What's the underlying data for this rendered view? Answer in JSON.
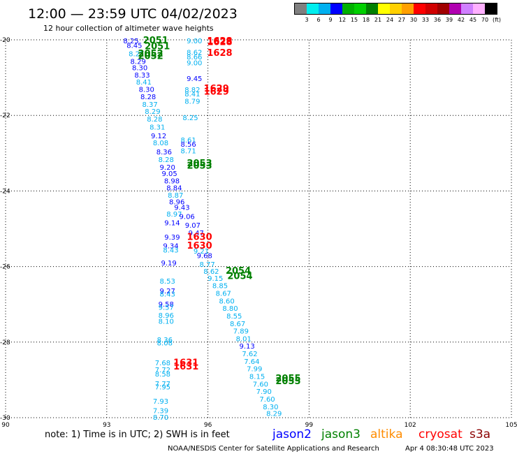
{
  "title": "12:00 — 23:59 UTC 04/02/2023",
  "subtitle": "12 hour collection of altimeter wave heights",
  "color_scale": {
    "labels": [
      "3",
      "6",
      "9",
      "12",
      "15",
      "18",
      "21",
      "24",
      "27",
      "30",
      "33",
      "36",
      "39",
      "42",
      "45",
      "70",
      "(ft)"
    ],
    "colors": [
      "#808080",
      "#00eeee",
      "#00b0f0",
      "#0000ff",
      "#00b000",
      "#00d000",
      "#008000",
      "#ffff00",
      "#ffd000",
      "#ffa000",
      "#ff0000",
      "#d00000",
      "#a00000",
      "#b000b0",
      "#d080ff",
      "#ffb0ff",
      "#000000"
    ]
  },
  "chart_data": {
    "type": "scatter",
    "xlim": [
      90,
      105
    ],
    "ylim": [
      -30,
      -20
    ],
    "x_ticks": [
      "90",
      "93",
      "96",
      "99",
      "102",
      "105"
    ],
    "y_ticks": [
      "-20",
      "-22",
      "-24",
      "-26",
      "-28",
      "-30"
    ],
    "grid": true,
    "swh_points": [
      {
        "x": 93.72,
        "y": -20.02,
        "text": "8.25",
        "color": "#0000ff"
      },
      {
        "x": 93.82,
        "y": -20.14,
        "text": "8.45",
        "color": "#0000ff"
      },
      {
        "x": 93.88,
        "y": -20.36,
        "text": "8.27",
        "color": "#00b0f0"
      },
      {
        "x": 93.93,
        "y": -20.56,
        "text": "8.29",
        "color": "#0000ff"
      },
      {
        "x": 93.98,
        "y": -20.73,
        "text": "8.30",
        "color": "#0000ff"
      },
      {
        "x": 94.05,
        "y": -20.92,
        "text": "8.33",
        "color": "#0000ff"
      },
      {
        "x": 94.1,
        "y": -21.11,
        "text": "8.41",
        "color": "#00b0f0"
      },
      {
        "x": 94.18,
        "y": -21.3,
        "text": "8.30",
        "color": "#0000ff"
      },
      {
        "x": 94.23,
        "y": -21.5,
        "text": "8.28",
        "color": "#0000ff"
      },
      {
        "x": 94.28,
        "y": -21.7,
        "text": "8.37",
        "color": "#00b0f0"
      },
      {
        "x": 94.36,
        "y": -21.89,
        "text": "8.29",
        "color": "#00b0f0"
      },
      {
        "x": 94.42,
        "y": -22.09,
        "text": "8.28",
        "color": "#00b0f0"
      },
      {
        "x": 94.5,
        "y": -22.3,
        "text": "8.31",
        "color": "#00b0f0"
      },
      {
        "x": 94.54,
        "y": -22.53,
        "text": "9.12",
        "color": "#0000ff"
      },
      {
        "x": 94.6,
        "y": -22.72,
        "text": "8.08",
        "color": "#00b0f0"
      },
      {
        "x": 94.7,
        "y": -22.96,
        "text": "8.36",
        "color": "#0000ff"
      },
      {
        "x": 94.76,
        "y": -23.16,
        "text": "8.28",
        "color": "#00b0f0"
      },
      {
        "x": 94.8,
        "y": -23.36,
        "text": "9.20",
        "color": "#0000ff"
      },
      {
        "x": 94.86,
        "y": -23.53,
        "text": "9.05",
        "color": "#0000ff"
      },
      {
        "x": 94.93,
        "y": -23.72,
        "text": "8.98",
        "color": "#0000ff"
      },
      {
        "x": 95.0,
        "y": -23.91,
        "text": "8.84",
        "color": "#0000ff"
      },
      {
        "x": 95.04,
        "y": -24.1,
        "text": "8.87",
        "color": "#00b0f0"
      },
      {
        "x": 95.08,
        "y": -24.28,
        "text": "8.96",
        "color": "#0000ff"
      },
      {
        "x": 95.23,
        "y": -24.43,
        "text": "9.43",
        "color": "#0000ff"
      },
      {
        "x": 95.0,
        "y": -24.6,
        "text": "8.97",
        "color": "#00b0f0"
      },
      {
        "x": 95.38,
        "y": -24.67,
        "text": "9.06",
        "color": "#0000ff"
      },
      {
        "x": 94.94,
        "y": -24.83,
        "text": "9.14",
        "color": "#0000ff"
      },
      {
        "x": 95.55,
        "y": -24.9,
        "text": "9.07",
        "color": "#0000ff"
      },
      {
        "x": 94.94,
        "y": -25.21,
        "text": "9.39",
        "color": "#0000ff"
      },
      {
        "x": 95.65,
        "y": -25.1,
        "text": "9.47",
        "color": "#0000ff"
      },
      {
        "x": 94.9,
        "y": -25.44,
        "text": "9.34",
        "color": "#0000ff"
      },
      {
        "x": 94.9,
        "y": -25.55,
        "text": "8.43",
        "color": "#00b0f0"
      },
      {
        "x": 95.8,
        "y": -25.58,
        "text": "9.21",
        "color": "#00b0f0"
      },
      {
        "x": 95.9,
        "y": -25.7,
        "text": "9.68",
        "color": "#0000ff"
      },
      {
        "x": 94.84,
        "y": -25.9,
        "text": "9.19",
        "color": "#0000ff"
      },
      {
        "x": 95.98,
        "y": -25.93,
        "text": "8.77",
        "color": "#00b0f0"
      },
      {
        "x": 96.1,
        "y": -26.12,
        "text": "8.62",
        "color": "#00b0f0"
      },
      {
        "x": 94.8,
        "y": -26.38,
        "text": "8.53",
        "color": "#00b0f0"
      },
      {
        "x": 96.22,
        "y": -26.3,
        "text": "9.15",
        "color": "#00b0f0"
      },
      {
        "x": 94.8,
        "y": -26.64,
        "text": "9.27",
        "color": "#0000ff"
      },
      {
        "x": 94.8,
        "y": -26.72,
        "text": "8.43",
        "color": "#00b0f0"
      },
      {
        "x": 96.36,
        "y": -26.5,
        "text": "8.85",
        "color": "#00b0f0"
      },
      {
        "x": 96.46,
        "y": -26.7,
        "text": "8.67",
        "color": "#00b0f0"
      },
      {
        "x": 94.76,
        "y": -26.99,
        "text": "9.58",
        "color": "#0000ff"
      },
      {
        "x": 94.76,
        "y": -27.07,
        "text": "9.57",
        "color": "#00b0f0"
      },
      {
        "x": 96.56,
        "y": -26.9,
        "text": "8.60",
        "color": "#00b0f0"
      },
      {
        "x": 96.66,
        "y": -27.1,
        "text": "8.80",
        "color": "#00b0f0"
      },
      {
        "x": 94.76,
        "y": -27.28,
        "text": "8.96",
        "color": "#00b0f0"
      },
      {
        "x": 94.76,
        "y": -27.44,
        "text": "8.10",
        "color": "#00b0f0"
      },
      {
        "x": 96.78,
        "y": -27.3,
        "text": "8.55",
        "color": "#00b0f0"
      },
      {
        "x": 96.88,
        "y": -27.5,
        "text": "8.67",
        "color": "#00b0f0"
      },
      {
        "x": 96.98,
        "y": -27.7,
        "text": "7.89",
        "color": "#00b0f0"
      },
      {
        "x": 97.06,
        "y": -27.9,
        "text": "8.01",
        "color": "#00b0f0"
      },
      {
        "x": 94.72,
        "y": -27.93,
        "text": "8.36",
        "color": "#00b0f0"
      },
      {
        "x": 94.72,
        "y": -28.01,
        "text": "8.08",
        "color": "#00b0f0"
      },
      {
        "x": 97.16,
        "y": -28.1,
        "text": "9.13",
        "color": "#0000ff"
      },
      {
        "x": 97.24,
        "y": -28.3,
        "text": "7.62",
        "color": "#00b0f0"
      },
      {
        "x": 97.3,
        "y": -28.5,
        "text": "7.64",
        "color": "#00b0f0"
      },
      {
        "x": 94.66,
        "y": -28.54,
        "text": "7.68",
        "color": "#00b0f0"
      },
      {
        "x": 94.66,
        "y": -28.72,
        "text": "7.72",
        "color": "#00b0f0"
      },
      {
        "x": 94.66,
        "y": -28.84,
        "text": "8.58",
        "color": "#00b0f0"
      },
      {
        "x": 97.38,
        "y": -28.7,
        "text": "7.99",
        "color": "#00b0f0"
      },
      {
        "x": 97.46,
        "y": -28.9,
        "text": "8.15",
        "color": "#00b0f0"
      },
      {
        "x": 94.66,
        "y": -29.09,
        "text": "7.77",
        "color": "#00b0f0"
      },
      {
        "x": 94.66,
        "y": -29.18,
        "text": "7.95",
        "color": "#00b0f0"
      },
      {
        "x": 97.56,
        "y": -29.1,
        "text": "7.60",
        "color": "#00b0f0"
      },
      {
        "x": 97.66,
        "y": -29.3,
        "text": "7.90",
        "color": "#00b0f0"
      },
      {
        "x": 97.76,
        "y": -29.5,
        "text": "7.60",
        "color": "#00b0f0"
      },
      {
        "x": 94.6,
        "y": -29.56,
        "text": "7.93",
        "color": "#00b0f0"
      },
      {
        "x": 97.86,
        "y": -29.7,
        "text": "8.30",
        "color": "#00b0f0"
      },
      {
        "x": 94.6,
        "y": -29.81,
        "text": "7.39",
        "color": "#00b0f0"
      },
      {
        "x": 97.96,
        "y": -29.88,
        "text": "8.29",
        "color": "#00b0f0"
      },
      {
        "x": 94.6,
        "y": -29.98,
        "text": "8.70",
        "color": "#00b0f0"
      },
      {
        "x": 95.6,
        "y": -20.02,
        "text": "9.00",
        "color": "#00b0f0"
      },
      {
        "x": 95.6,
        "y": -20.32,
        "text": "8.62",
        "color": "#00b0f0"
      },
      {
        "x": 95.6,
        "y": -20.44,
        "text": "8.66",
        "color": "#00b0f0"
      },
      {
        "x": 95.6,
        "y": -20.6,
        "text": "9.00",
        "color": "#00b0f0"
      },
      {
        "x": 95.6,
        "y": -21.02,
        "text": "9.45",
        "color": "#0000ff"
      },
      {
        "x": 95.54,
        "y": -21.31,
        "text": "8.82",
        "color": "#00b0f0"
      },
      {
        "x": 95.54,
        "y": -21.42,
        "text": "8.41",
        "color": "#00b0f0"
      },
      {
        "x": 95.54,
        "y": -21.62,
        "text": "8.79",
        "color": "#00b0f0"
      },
      {
        "x": 95.48,
        "y": -22.05,
        "text": "8.25",
        "color": "#00b0f0"
      },
      {
        "x": 95.42,
        "y": -22.64,
        "text": "8.61",
        "color": "#00b0f0"
      },
      {
        "x": 95.42,
        "y": -22.75,
        "text": "8.56",
        "color": "#0000ff"
      },
      {
        "x": 95.42,
        "y": -22.93,
        "text": "8.71",
        "color": "#00b0f0"
      }
    ],
    "orbit_labels": [
      {
        "x": 94.45,
        "y": -20.0,
        "text": "2051",
        "color": "#008000"
      },
      {
        "x": 94.5,
        "y": -20.16,
        "text": "2051",
        "color": "#008000"
      },
      {
        "x": 94.3,
        "y": -20.35,
        "text": "2052",
        "color": "#008000"
      },
      {
        "x": 94.3,
        "y": -20.42,
        "text": "2052",
        "color": "#008000"
      },
      {
        "x": 96.35,
        "y": -20.02,
        "text": "1628",
        "color": "#ff0000"
      },
      {
        "x": 96.35,
        "y": -20.05,
        "text": "1628",
        "color": "#ff0000"
      },
      {
        "x": 96.35,
        "y": -20.33,
        "text": "1628",
        "color": "#ff0000"
      },
      {
        "x": 96.25,
        "y": -21.28,
        "text": "1629",
        "color": "#ff0000"
      },
      {
        "x": 96.25,
        "y": -21.36,
        "text": "1629",
        "color": "#ff0000"
      },
      {
        "x": 95.75,
        "y": -23.25,
        "text": "2053",
        "color": "#008000"
      },
      {
        "x": 95.75,
        "y": -23.32,
        "text": "2053",
        "color": "#008000"
      },
      {
        "x": 95.75,
        "y": -25.2,
        "text": "1630",
        "color": "#ff0000"
      },
      {
        "x": 95.75,
        "y": -25.43,
        "text": "1630",
        "color": "#ff0000"
      },
      {
        "x": 96.9,
        "y": -26.1,
        "text": "2054",
        "color": "#008000"
      },
      {
        "x": 96.95,
        "y": -26.24,
        "text": "2054",
        "color": "#008000"
      },
      {
        "x": 95.35,
        "y": -28.53,
        "text": "1631",
        "color": "#ff0000"
      },
      {
        "x": 95.35,
        "y": -28.63,
        "text": "1631",
        "color": "#ff0000"
      },
      {
        "x": 98.38,
        "y": -28.95,
        "text": "2055",
        "color": "#008000"
      },
      {
        "x": 98.38,
        "y": -29.02,
        "text": "2055",
        "color": "#008000"
      }
    ]
  },
  "footer": {
    "note": "note: 1) Time is in UTC; 2) SWH is in feet",
    "missions": [
      {
        "name": "jason2",
        "color": "#0000ff"
      },
      {
        "name": "jason3",
        "color": "#008000"
      },
      {
        "name": "altika",
        "color": "#ff8c00"
      },
      {
        "name": "cryosat",
        "color": "#ff0000"
      },
      {
        "name": "s3a",
        "color": "#8b0000"
      }
    ],
    "credit": "NOAA/NESDIS Center for Satellite Applications and Research",
    "timestamp": "Apr  4 08:30:48 UTC 2023"
  }
}
